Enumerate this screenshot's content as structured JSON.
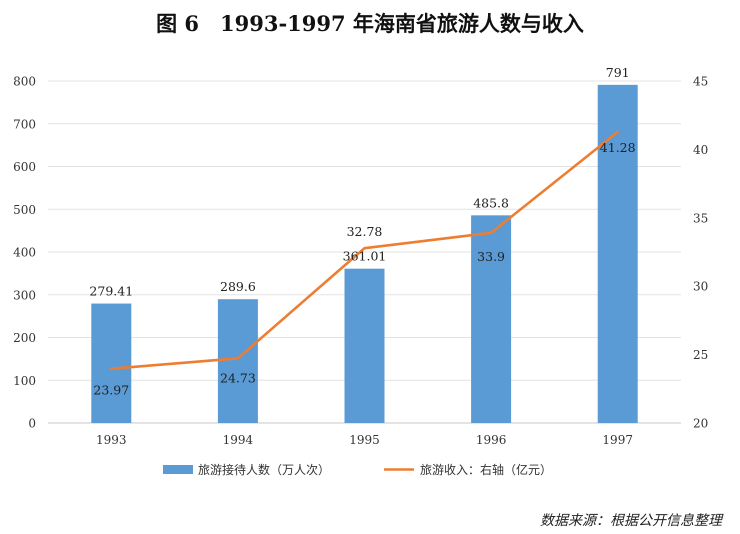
{
  "chart_data": {
    "type": "bar",
    "title": "图 6　1993-1997 年海南省旅游人数与收入",
    "categories": [
      "1993",
      "1994",
      "1995",
      "1996",
      "1997"
    ],
    "series": [
      {
        "name": "旅游接待人数（万人次）",
        "type": "bar",
        "axis": "left",
        "color": "#5b9bd5",
        "values": [
          279.41,
          289.6,
          361.01,
          485.8,
          791
        ],
        "labels": [
          "279.41",
          "289.6",
          "361.01",
          "485.8",
          "791"
        ]
      },
      {
        "name": "旅游收入：右轴（亿元）",
        "type": "line",
        "axis": "right",
        "color": "#ed7d31",
        "values": [
          23.97,
          24.73,
          32.78,
          33.9,
          41.28
        ],
        "labels": [
          "23.97",
          "24.73",
          "32.78",
          "33.9",
          "41.28"
        ]
      }
    ],
    "y_left": {
      "min": 0,
      "max": 800,
      "ticks": [
        0,
        100,
        200,
        300,
        400,
        500,
        600,
        700,
        800
      ]
    },
    "y_right": {
      "min": 20,
      "max": 45,
      "ticks": [
        20,
        25,
        30,
        35,
        40,
        45
      ]
    },
    "grid": true,
    "legend_position": "bottom"
  },
  "footer": {
    "source": "数据来源：根据公开信息整理"
  }
}
